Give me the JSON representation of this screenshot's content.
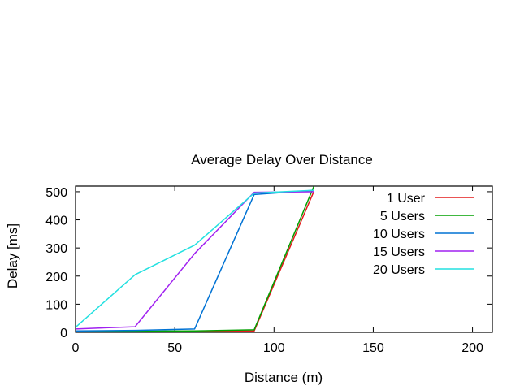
{
  "chart_data": {
    "type": "line",
    "title": "Average Delay Over Distance",
    "xlabel": "Distance (m)",
    "ylabel": "Delay [ms]",
    "xlim": [
      0,
      210
    ],
    "ylim": [
      0,
      520
    ],
    "xticks": [
      0,
      50,
      100,
      150,
      200
    ],
    "yticks": [
      0,
      100,
      200,
      300,
      400,
      500
    ],
    "grid": false,
    "legend_position": "top-right",
    "series": [
      {
        "name": "1 User",
        "color": "#e41a1c",
        "x": [
          0,
          30,
          60,
          90,
          120
        ],
        "y": [
          2,
          3,
          4,
          5,
          500
        ]
      },
      {
        "name": "5 Users",
        "color": "#00a000",
        "x": [
          0,
          30,
          60,
          90,
          120
        ],
        "y": [
          3,
          4,
          5,
          9,
          518
        ]
      },
      {
        "name": "10 Users",
        "color": "#0072d4",
        "x": [
          0,
          30,
          60,
          90,
          120
        ],
        "y": [
          5,
          7,
          12,
          490,
          505
        ]
      },
      {
        "name": "15 Users",
        "color": "#a020f0",
        "x": [
          0,
          30,
          60,
          90,
          120
        ],
        "y": [
          12,
          20,
          280,
          498,
          500
        ]
      },
      {
        "name": "20 Users",
        "color": "#22e0e0",
        "x": [
          0,
          30,
          60,
          90,
          120
        ],
        "y": [
          18,
          205,
          310,
          495,
          505
        ]
      }
    ]
  }
}
